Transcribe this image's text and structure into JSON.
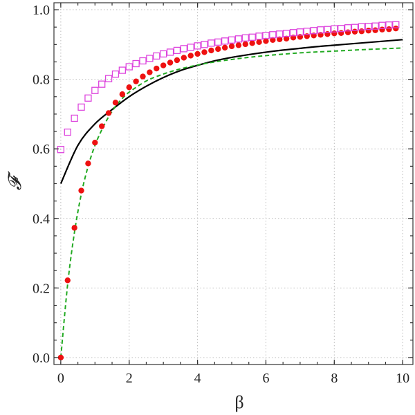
{
  "chart_data": {
    "type": "line",
    "title": "",
    "xlabel": "β",
    "ylabel": "𝓕",
    "xlim": [
      -0.2,
      10.3
    ],
    "ylim": [
      -0.02,
      1.02
    ],
    "grid": true,
    "x_ticks": [
      0,
      2,
      4,
      6,
      8,
      10
    ],
    "x_tick_labels": [
      "0",
      "2",
      "4",
      "6",
      "8",
      "10"
    ],
    "y_ticks": [
      0.0,
      0.2,
      0.4,
      0.6,
      0.8,
      1.0
    ],
    "y_tick_labels": [
      "0.0",
      "0.2",
      "0.4",
      "0.6",
      "0.8",
      "1.0"
    ],
    "series": [
      {
        "style": "solid-line",
        "color": "#000000",
        "x": [
          0,
          0.5,
          1,
          1.5,
          2,
          2.5,
          3,
          3.5,
          4,
          4.5,
          5,
          5.5,
          6,
          6.5,
          7,
          7.5,
          8,
          8.5,
          9,
          9.5,
          10
        ],
        "y": [
          0.5,
          0.61,
          0.672,
          0.713,
          0.75,
          0.78,
          0.805,
          0.825,
          0.84,
          0.853,
          0.863,
          0.871,
          0.878,
          0.884,
          0.889,
          0.894,
          0.898,
          0.902,
          0.906,
          0.91,
          0.914
        ]
      },
      {
        "style": "dashed-line",
        "color": "#22aa22",
        "x": [
          0,
          0.2,
          0.4,
          0.6,
          0.8,
          1.0,
          1.2,
          1.4,
          1.6,
          1.8,
          2.0,
          2.5,
          3,
          3.5,
          4,
          4.5,
          5,
          5.5,
          6,
          7,
          8,
          9,
          10
        ],
        "y": [
          0.0,
          0.21,
          0.36,
          0.47,
          0.55,
          0.61,
          0.655,
          0.692,
          0.722,
          0.745,
          0.763,
          0.795,
          0.815,
          0.83,
          0.841,
          0.85,
          0.857,
          0.863,
          0.868,
          0.876,
          0.881,
          0.886,
          0.89
        ]
      },
      {
        "style": "filled-circles",
        "color": "#ee1111",
        "x": [
          0,
          0.2,
          0.4,
          0.6,
          0.8,
          1.0,
          1.2,
          1.4,
          1.6,
          1.8,
          2.0,
          2.2,
          2.4,
          2.6,
          2.8,
          3.0,
          3.2,
          3.4,
          3.6,
          3.8,
          4.0,
          4.2,
          4.4,
          4.6,
          4.8,
          5.0,
          5.2,
          5.4,
          5.6,
          5.8,
          6.0,
          6.2,
          6.4,
          6.6,
          6.8,
          7.0,
          7.2,
          7.4,
          7.6,
          7.8,
          8.0,
          8.2,
          8.4,
          8.6,
          8.8,
          9.0,
          9.2,
          9.4,
          9.6,
          9.8
        ],
        "y": [
          0.0,
          0.222,
          0.373,
          0.48,
          0.558,
          0.618,
          0.665,
          0.703,
          0.733,
          0.757,
          0.777,
          0.794,
          0.808,
          0.82,
          0.831,
          0.84,
          0.848,
          0.855,
          0.862,
          0.868,
          0.873,
          0.878,
          0.883,
          0.887,
          0.891,
          0.895,
          0.898,
          0.901,
          0.904,
          0.907,
          0.91,
          0.913,
          0.915,
          0.917,
          0.92,
          0.922,
          0.924,
          0.926,
          0.928,
          0.93,
          0.932,
          0.933,
          0.935,
          0.937,
          0.938,
          0.94,
          0.941,
          0.943,
          0.944,
          0.946
        ]
      },
      {
        "style": "open-squares",
        "color": "#dd44dd",
        "x": [
          0,
          0.2,
          0.4,
          0.6,
          0.8,
          1.0,
          1.2,
          1.4,
          1.6,
          1.8,
          2.0,
          2.2,
          2.4,
          2.6,
          2.8,
          3.0,
          3.2,
          3.4,
          3.6,
          3.8,
          4.0,
          4.2,
          4.4,
          4.6,
          4.8,
          5.0,
          5.2,
          5.4,
          5.6,
          5.8,
          6.0,
          6.2,
          6.4,
          6.6,
          6.8,
          7.0,
          7.2,
          7.4,
          7.6,
          7.8,
          8.0,
          8.2,
          8.4,
          8.6,
          8.8,
          9.0,
          9.2,
          9.4,
          9.6,
          9.8
        ],
        "y": [
          0.598,
          0.648,
          0.688,
          0.72,
          0.746,
          0.768,
          0.786,
          0.802,
          0.815,
          0.826,
          0.836,
          0.845,
          0.853,
          0.86,
          0.867,
          0.873,
          0.878,
          0.883,
          0.888,
          0.892,
          0.896,
          0.9,
          0.904,
          0.907,
          0.91,
          0.913,
          0.916,
          0.919,
          0.921,
          0.924,
          0.926,
          0.928,
          0.93,
          0.932,
          0.934,
          0.936,
          0.938,
          0.94,
          0.942,
          0.943,
          0.945,
          0.946,
          0.948,
          0.949,
          0.951,
          0.952,
          0.953,
          0.955,
          0.956,
          0.957
        ]
      }
    ]
  }
}
